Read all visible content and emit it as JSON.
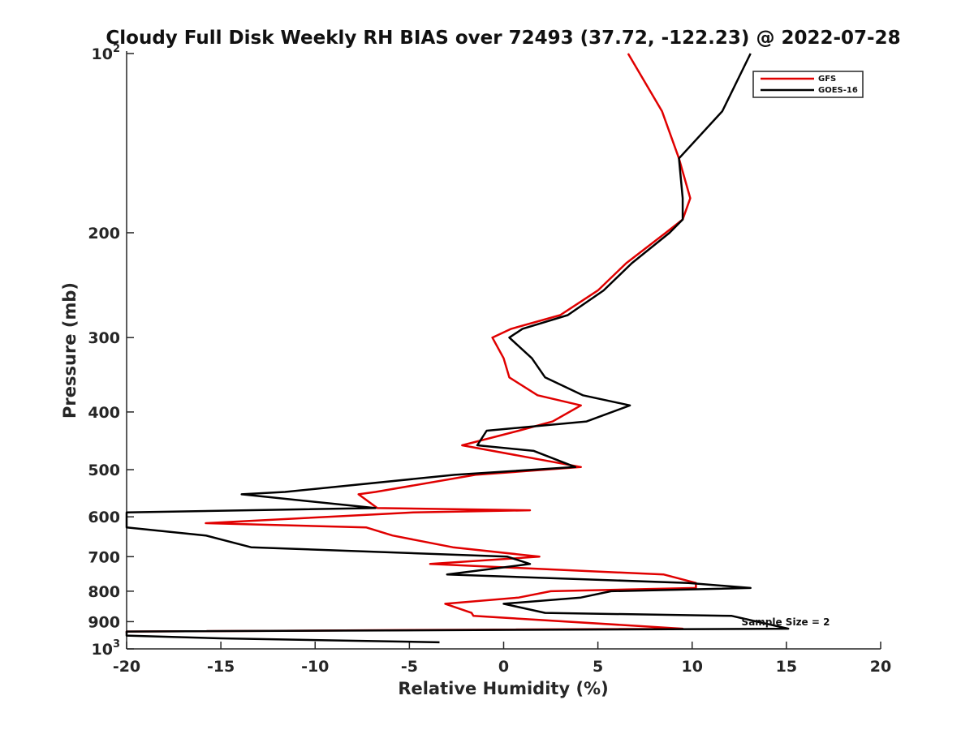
{
  "chart_data": {
    "type": "line",
    "title": "Cloudy Full Disk Weekly RH BIAS over 72493 (37.72, -122.23) @ 2022-07-28",
    "xlabel": "Relative Humidity (%)",
    "ylabel": "Pressure (mb)",
    "xlim": [
      -20,
      20
    ],
    "ylim": [
      100,
      1000
    ],
    "yscale": "log",
    "y_reversed": true,
    "grid": false,
    "legend_position": "top-right",
    "x_ticks": [
      -20,
      -15,
      -10,
      -5,
      0,
      5,
      10,
      15,
      20
    ],
    "x_tick_labels": [
      "-20",
      "-15",
      "-10",
      "-5",
      "0",
      "5",
      "10",
      "15",
      "20"
    ],
    "y_ticks": [
      100,
      200,
      300,
      400,
      500,
      600,
      700,
      800,
      900,
      1000
    ],
    "y_tick_labels": [
      {
        "base": "10",
        "sup": "2"
      },
      {
        "base": "200",
        "sup": ""
      },
      {
        "base": "300",
        "sup": ""
      },
      {
        "base": "400",
        "sup": ""
      },
      {
        "base": "500",
        "sup": ""
      },
      {
        "base": "600",
        "sup": ""
      },
      {
        "base": "700",
        "sup": ""
      },
      {
        "base": "800",
        "sup": ""
      },
      {
        "base": "900",
        "sup": ""
      },
      {
        "base": "10",
        "sup": "3"
      }
    ],
    "series": [
      {
        "name": "GFS",
        "color": "#e00000",
        "points": [
          [
            6.6,
            100
          ],
          [
            8.4,
            125
          ],
          [
            9.3,
            150
          ],
          [
            9.9,
            175
          ],
          [
            9.5,
            190
          ],
          [
            8.6,
            200
          ],
          [
            6.5,
            225
          ],
          [
            5.0,
            250
          ],
          [
            3.0,
            275
          ],
          [
            0.4,
            290
          ],
          [
            -0.6,
            300
          ],
          [
            0.0,
            325
          ],
          [
            0.3,
            350
          ],
          [
            1.8,
            375
          ],
          [
            4.1,
            390
          ],
          [
            2.6,
            415
          ],
          [
            0.8,
            430
          ],
          [
            -2.2,
            455
          ],
          [
            4.1,
            495
          ],
          [
            -1.5,
            510
          ],
          [
            -6.8,
            545
          ],
          [
            -7.7,
            550
          ],
          [
            -6.7,
            580
          ],
          [
            1.4,
            585
          ],
          [
            -4.8,
            590
          ],
          [
            -15.8,
            615
          ],
          [
            -7.3,
            625
          ],
          [
            -5.9,
            645
          ],
          [
            -2.7,
            675
          ],
          [
            1.9,
            700
          ],
          [
            -3.9,
            720
          ],
          [
            8.5,
            750
          ],
          [
            10.2,
            775
          ],
          [
            10.2,
            790
          ],
          [
            2.5,
            800
          ],
          [
            0.8,
            820
          ],
          [
            -3.1,
            840
          ],
          [
            -1.7,
            870
          ],
          [
            -1.6,
            880
          ],
          [
            9.5,
            925
          ],
          [
            -20.0,
            935
          ],
          [
            -20.0,
            940
          ]
        ]
      },
      {
        "name": "GOES-16",
        "color": "#000000",
        "points": [
          [
            13.1,
            100
          ],
          [
            11.6,
            125
          ],
          [
            9.3,
            150
          ],
          [
            9.5,
            175
          ],
          [
            9.5,
            190
          ],
          [
            8.8,
            200
          ],
          [
            6.8,
            225
          ],
          [
            5.3,
            250
          ],
          [
            3.4,
            275
          ],
          [
            1.0,
            290
          ],
          [
            0.3,
            300
          ],
          [
            1.5,
            325
          ],
          [
            2.2,
            350
          ],
          [
            4.2,
            375
          ],
          [
            6.7,
            390
          ],
          [
            4.4,
            415
          ],
          [
            -0.9,
            430
          ],
          [
            -1.4,
            455
          ],
          [
            1.6,
            465
          ],
          [
            3.8,
            495
          ],
          [
            -2.6,
            510
          ],
          [
            -11.6,
            545
          ],
          [
            -13.9,
            550
          ],
          [
            -6.8,
            580
          ],
          [
            -13.6,
            585
          ],
          [
            -20.0,
            590
          ],
          [
            -20.0,
            625
          ],
          [
            -15.8,
            645
          ],
          [
            -13.4,
            675
          ],
          [
            0.2,
            700
          ],
          [
            1.4,
            720
          ],
          [
            -3.0,
            750
          ],
          [
            9.8,
            775
          ],
          [
            13.1,
            790
          ],
          [
            5.7,
            800
          ],
          [
            4.1,
            820
          ],
          [
            0.0,
            840
          ],
          [
            2.2,
            870
          ],
          [
            12.1,
            880
          ],
          [
            15.1,
            925
          ],
          [
            -20.0,
            935
          ],
          [
            -20.0,
            950
          ],
          [
            -15.0,
            960
          ],
          [
            -3.4,
            975
          ]
        ]
      }
    ],
    "annotation": "Sample Size = 2"
  }
}
